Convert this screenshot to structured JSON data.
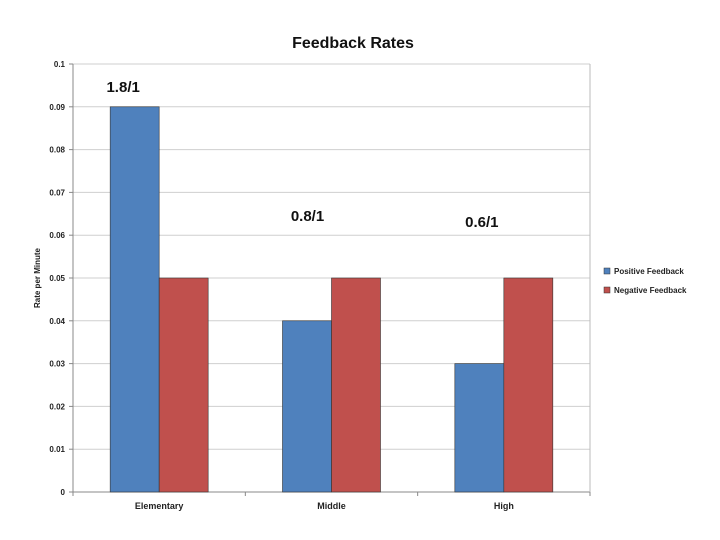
{
  "chart_data": {
    "type": "bar",
    "title": "Feedback Rates",
    "xlabel": "",
    "ylabel": "Rate per Minute",
    "ylim": [
      0,
      0.1
    ],
    "yticks": [
      0,
      0.01,
      0.02,
      0.03,
      0.04,
      0.05,
      0.06,
      0.07,
      0.08,
      0.09,
      0.1
    ],
    "ytick_labels": [
      "0",
      "0.01",
      "0.02",
      "0.03",
      "0.04",
      "0.05",
      "0.06",
      "0.07",
      "0.08",
      "0.09",
      "0.1"
    ],
    "categories": [
      "Elementary",
      "Middle",
      "High"
    ],
    "series": [
      {
        "name": "Positive Feedback",
        "values": [
          0.09,
          0.04,
          0.03
        ],
        "color": "#4F81BD"
      },
      {
        "name": "Negative Feedback",
        "values": [
          0.05,
          0.05,
          0.05
        ],
        "color": "#C0504D"
      }
    ],
    "annotations": [
      "1.8/1",
      "0.8/1",
      "0.6/1"
    ],
    "grid": true,
    "legend": "right"
  }
}
